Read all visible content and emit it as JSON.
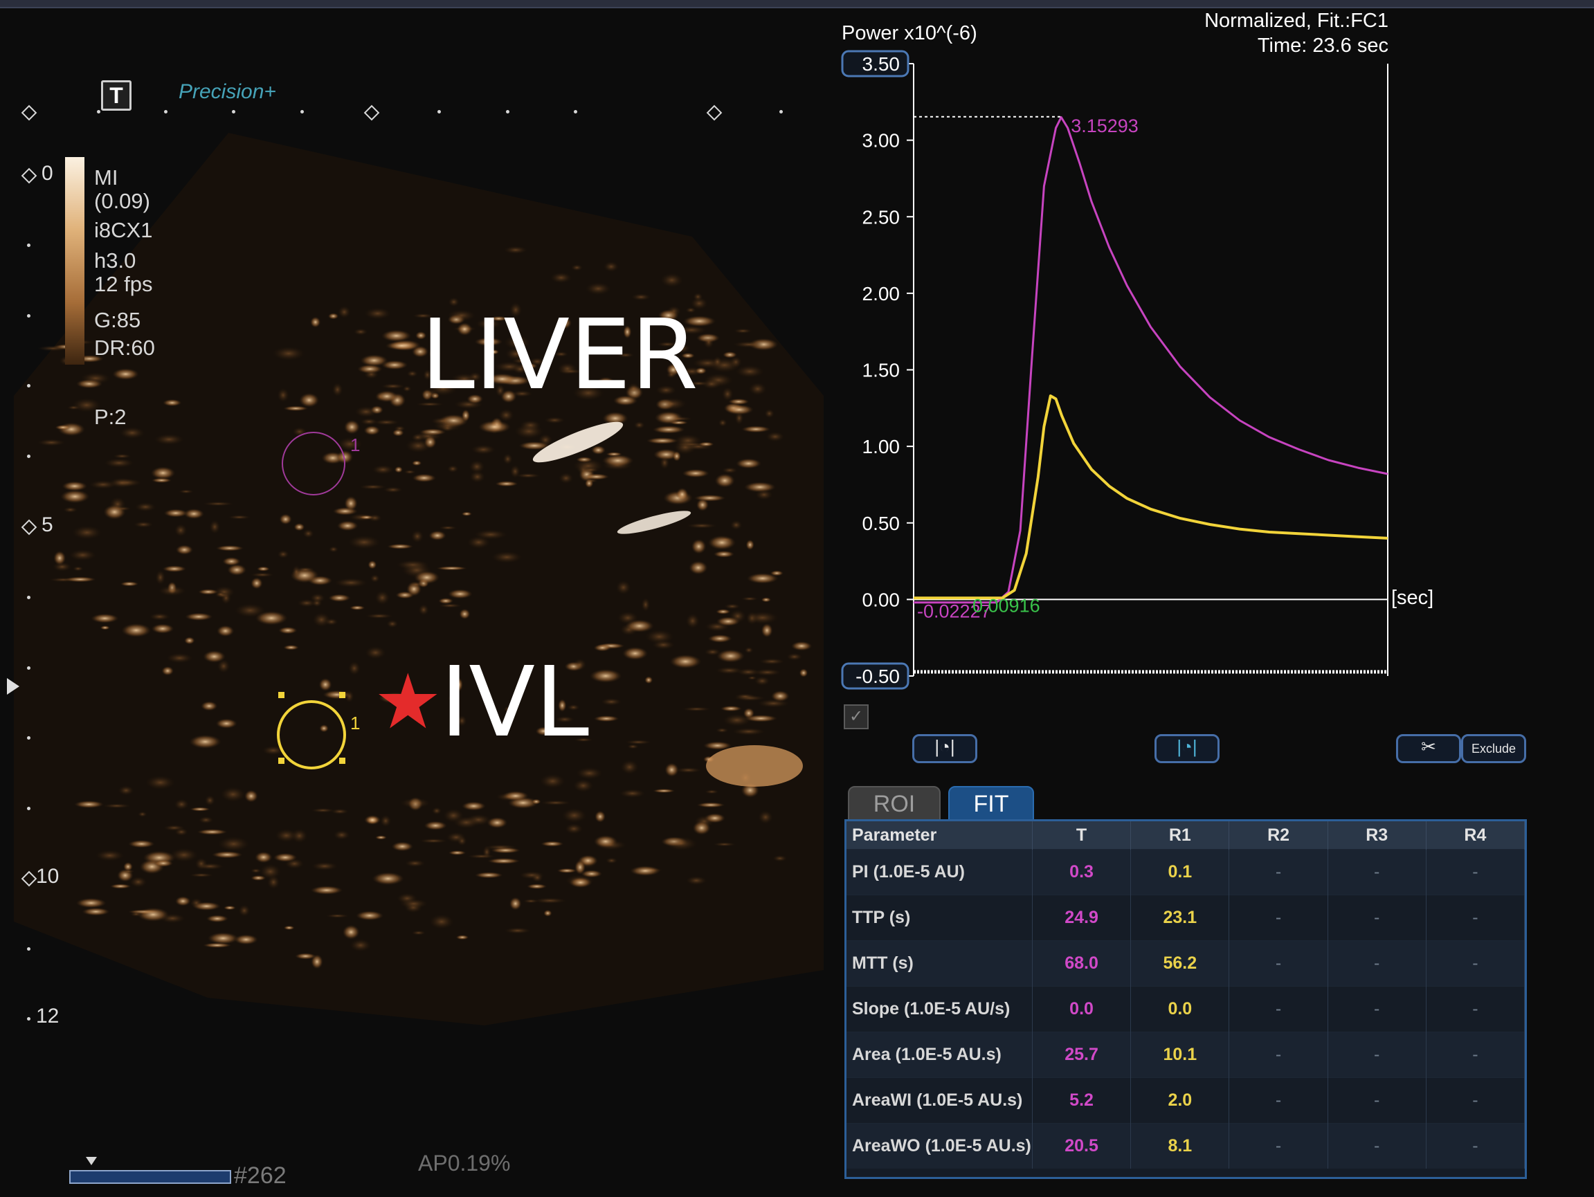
{
  "image_panel": {
    "precision_label": "Precision+",
    "t_tool": "T",
    "depth_labels": [
      "0",
      "5",
      "10",
      "12"
    ],
    "params": [
      "MI",
      "(0.09)",
      "i8CX1",
      "h3.0",
      "12 fps",
      "",
      "G:85",
      "DR:60",
      "",
      "",
      "P:2"
    ],
    "organ_label": "LIVER",
    "vessel_label": "IVL",
    "star": "★",
    "roi_number": "1",
    "frame": "#262",
    "ap": "AP0.19%"
  },
  "chart": {
    "y_title": "Power x10^(-6)",
    "info_line1": "Normalized, Fit.:FC1",
    "info_line2": "Time: 23.6 sec",
    "x_unit": "[sec]",
    "y_ticks": [
      "3.50",
      "3.00",
      "2.50",
      "2.00",
      "1.50",
      "1.00",
      "0.50",
      "0.00",
      "-0.50"
    ],
    "peak_label": "3.15293",
    "baseline_label_1": "-0.02227",
    "baseline_label_2": "0.00916",
    "checkbox_mark": "✓",
    "exclude_label": "Exclude"
  },
  "chart_data": {
    "type": "line",
    "title": "",
    "ylabel": "Power x10^(-6)",
    "xlabel": "[sec]",
    "ylim": [
      -0.5,
      3.5
    ],
    "series": [
      {
        "color": "#c744c0",
        "x": [
          0,
          5,
          10,
          14,
          16,
          18,
          20,
          22,
          24,
          24.9,
          26,
          28,
          30,
          33,
          36,
          40,
          45,
          50,
          55,
          60,
          65,
          70,
          75,
          80
        ],
        "values": [
          -0.02,
          -0.02,
          -0.02,
          -0.02,
          0.05,
          0.45,
          1.6,
          2.7,
          3.08,
          3.15,
          3.08,
          2.85,
          2.6,
          2.3,
          2.05,
          1.78,
          1.52,
          1.32,
          1.17,
          1.06,
          0.98,
          0.91,
          0.86,
          0.82
        ]
      },
      {
        "color": "#f2d43a",
        "x": [
          0,
          5,
          10,
          15,
          17,
          19,
          21,
          22,
          23.1,
          24,
          25,
          27,
          30,
          33,
          36,
          40,
          45,
          50,
          55,
          60,
          65,
          70,
          75,
          80
        ],
        "values": [
          0.01,
          0.01,
          0.01,
          0.01,
          0.06,
          0.3,
          0.8,
          1.13,
          1.33,
          1.31,
          1.2,
          1.02,
          0.85,
          0.74,
          0.66,
          0.59,
          0.53,
          0.49,
          0.46,
          0.44,
          0.43,
          0.42,
          0.41,
          0.4
        ]
      }
    ],
    "annotations": [
      "3.15293",
      "-0.02227",
      "0.00916"
    ]
  },
  "table": {
    "tabs": [
      "ROI",
      "FIT"
    ],
    "headers": [
      "Parameter",
      "T",
      "R1",
      "R2",
      "R3",
      "R4"
    ],
    "rows": [
      [
        "PI (1.0E-5 AU)",
        "0.3",
        "0.1",
        "-",
        "-",
        "-"
      ],
      [
        "TTP (s)",
        "24.9",
        "23.1",
        "-",
        "-",
        "-"
      ],
      [
        "MTT (s)",
        "68.0",
        "56.2",
        "-",
        "-",
        "-"
      ],
      [
        "Slope (1.0E-5 AU/s)",
        "0.0",
        "0.0",
        "-",
        "-",
        "-"
      ],
      [
        "Area (1.0E-5 AU.s)",
        "25.7",
        "10.1",
        "-",
        "-",
        "-"
      ],
      [
        "AreaWI (1.0E-5 AU.s)",
        "5.2",
        "2.0",
        "-",
        "-",
        "-"
      ],
      [
        "AreaWO (1.0E-5 AU.s)",
        "20.5",
        "8.1",
        "-",
        "-",
        "-"
      ]
    ]
  }
}
